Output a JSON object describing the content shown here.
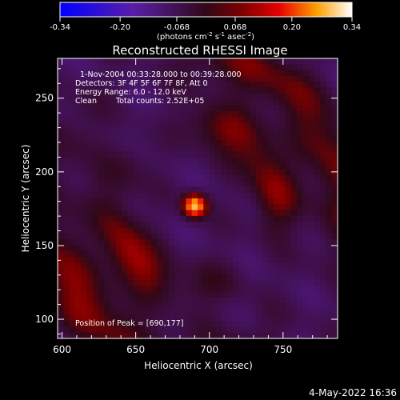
{
  "colorbar": {
    "ticks": [
      "-0.34",
      "-0.20",
      "-0.068",
      "0.068",
      "0.20",
      "0.34"
    ],
    "vmin": -0.34,
    "vmax": 0.34,
    "units_main": "(photons cm",
    "units_sup1": "-2",
    "units_mid": " s",
    "units_sup2": "-1",
    "units_mid2": " asec",
    "units_sup3": "-2",
    "units_end": ")"
  },
  "chart_data": {
    "type": "heatmap",
    "title": "Reconstructed RHESSI Image",
    "xlabel": "Heliocentric X (arcsec)",
    "ylabel": "Heliocentric Y (arcsec)",
    "xlim": [
      597,
      787
    ],
    "ylim": [
      87,
      277
    ],
    "xticks": [
      600,
      650,
      700,
      750
    ],
    "yticks": [
      100,
      150,
      200,
      250
    ],
    "annotations": {
      "time_range": "1-Nov-2004 00:33:28.000 to 00:39:28.000",
      "detectors": "Detectors: 3F 4F 5F 6F 7F 8F, Att 0",
      "energy": "Energy Range: 6.0 - 12.0 keV",
      "clean_label": "Clean",
      "total_counts": "Total counts: 2.52E+05",
      "peak": "Position of Peak = [690,177]"
    },
    "peak_position": [
      690,
      177
    ],
    "peak_value": 0.34,
    "components": [
      {
        "kind": "gaussian_source",
        "x": 690,
        "y": 177,
        "sigma": 5.5,
        "amp": 0.34
      },
      {
        "kind": "ring",
        "x": 690,
        "y": 177,
        "radius": 55,
        "width": 11,
        "amp": 0.14
      },
      {
        "kind": "ring",
        "x": 690,
        "y": 177,
        "radius": 100,
        "width": 13,
        "amp": 0.12
      }
    ]
  },
  "footer": {
    "date": "4-May-2022 16:36"
  }
}
